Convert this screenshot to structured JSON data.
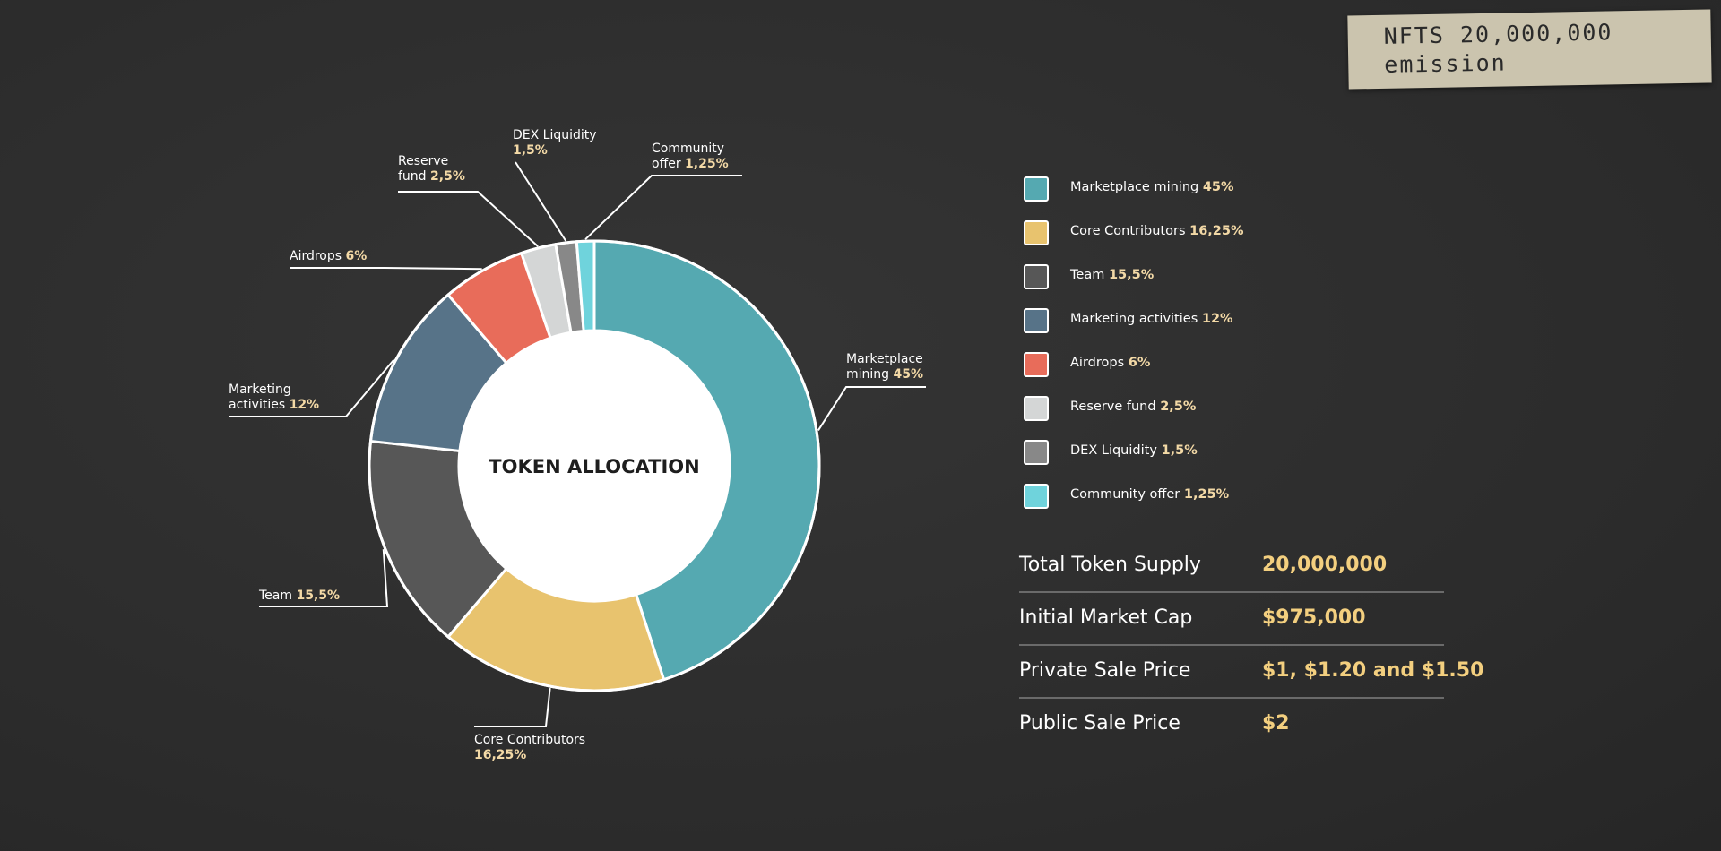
{
  "chart_data": {
    "type": "donut",
    "title": "TOKEN ALLOCATION",
    "categories": [
      "Marketplace mining",
      "Core Contributors",
      "Team",
      "Marketing activities",
      "Airdrops",
      "Reserve fund",
      "DEX Liquidity",
      "Community offer"
    ],
    "values": [
      45,
      16.25,
      15.5,
      12,
      6,
      2.5,
      1.5,
      1.25
    ],
    "value_labels": [
      "45%",
      "16,25%",
      "15,5%",
      "12%",
      "6%",
      "2,5%",
      "1,5%",
      "1,25%"
    ],
    "colors": [
      "#55a9b1",
      "#e8c36e",
      "#575757",
      "#577388",
      "#e86c5a",
      "#d4d6d6",
      "#888888",
      "#6fd3dc"
    ],
    "legend": "right"
  },
  "table": {
    "rows": [
      [
        "Total Token Supply",
        "20,000,000"
      ],
      [
        "Initial Market Cap",
        "$975,000"
      ],
      [
        "Private Sale Price",
        "$1, $1.20 and $1.50"
      ],
      [
        "Public Sale Price",
        "$2"
      ]
    ]
  },
  "note": {
    "lines": [
      "NFTS 20,000,000",
      "emission"
    ]
  }
}
